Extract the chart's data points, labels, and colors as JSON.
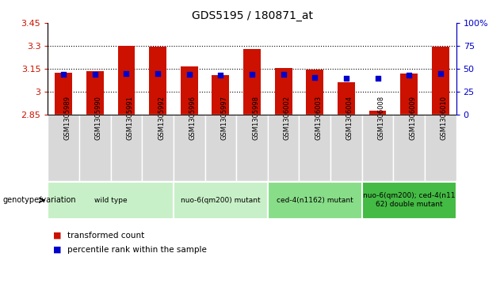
{
  "title": "GDS5195 / 180871_at",
  "samples": [
    "GSM1305989",
    "GSM1305990",
    "GSM1305991",
    "GSM1305992",
    "GSM1305996",
    "GSM1305997",
    "GSM1305998",
    "GSM1306002",
    "GSM1306003",
    "GSM1306004",
    "GSM1306008",
    "GSM1306009",
    "GSM1306010"
  ],
  "red_values": [
    3.125,
    3.135,
    3.302,
    3.293,
    3.168,
    3.108,
    3.278,
    3.155,
    3.148,
    3.063,
    2.875,
    3.118,
    3.293
  ],
  "blue_percentiles": [
    44,
    44,
    45,
    45,
    44,
    43,
    44,
    44,
    41,
    40,
    40,
    43,
    45
  ],
  "baseline": 2.85,
  "ylim_left": [
    2.85,
    3.45
  ],
  "ylim_right": [
    0,
    100
  ],
  "yticks_left": [
    2.85,
    3.0,
    3.15,
    3.3,
    3.45
  ],
  "ytick_labels_left": [
    "2.85",
    "3",
    "3.15",
    "3.3",
    "3.45"
  ],
  "ytick_labels_right": [
    "0",
    "25",
    "50",
    "75",
    "100%"
  ],
  "hlines": [
    3.0,
    3.15,
    3.3
  ],
  "groups": [
    {
      "label": "wild type",
      "start": 0,
      "end": 3,
      "color": "#c8f0c8"
    },
    {
      "label": "nuo-6(qm200) mutant",
      "start": 4,
      "end": 6,
      "color": "#c8f0c8"
    },
    {
      "label": "ced-4(n1162) mutant",
      "start": 7,
      "end": 9,
      "color": "#88dd88"
    },
    {
      "label": "nuo-6(qm200); ced-4(n11\n62) double mutant",
      "start": 10,
      "end": 12,
      "color": "#44bb44"
    }
  ],
  "bar_color": "#cc1100",
  "marker_color": "#0000cc",
  "left_tick_color": "#cc1100",
  "right_tick_color": "#0000cc",
  "genotype_label": "genotype/variation",
  "plot_bg": "white",
  "sample_box_bg": "#d8d8d8",
  "legend_items": [
    {
      "label": "transformed count",
      "color": "#cc1100"
    },
    {
      "label": "percentile rank within the sample",
      "color": "#0000cc"
    }
  ]
}
